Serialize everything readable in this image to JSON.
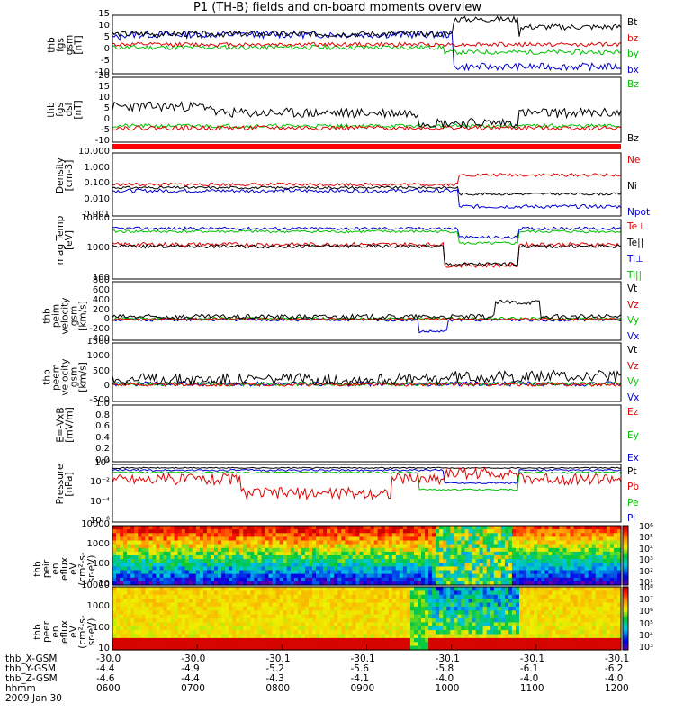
{
  "title": "P1 (TH-B) fields and on-board moments overview",
  "panels": [
    {
      "id": "fgs",
      "ylabel": "thb\nfgs\ngsm\n[nT]",
      "ticks": [
        "15",
        "10",
        "5",
        "0",
        "-5",
        "-10"
      ],
      "legend": [
        {
          "t": "Bt",
          "c": "#000000"
        },
        {
          "t": "bz",
          "c": "#e00000"
        },
        {
          "t": "by",
          "c": "#00c000"
        },
        {
          "t": "bx",
          "c": "#0000d0"
        }
      ]
    },
    {
      "id": "fgs-dsl",
      "ylabel": "thb\nfgs\ndsl\n[nT]",
      "ticks": [
        "20",
        "15",
        "10",
        "5",
        "0",
        "-5",
        "-10"
      ],
      "legend": [
        {
          "t": "Bz",
          "c": "#00c000"
        },
        {
          "t": "Bz",
          "c": "#000000"
        }
      ]
    },
    {
      "id": "density",
      "ylabel": "Density\n[cm-3]",
      "ticks": [
        "10.000",
        "1.000",
        "0.100",
        "0.010",
        "0.001"
      ],
      "legend": [
        {
          "t": "Ne",
          "c": "#e00000"
        },
        {
          "t": "Ni",
          "c": "#000000"
        },
        {
          "t": "Npot",
          "c": "#0000d0"
        }
      ]
    },
    {
      "id": "temp",
      "ylabel": "mag Temp\n[eV]",
      "ticks": [
        "10000",
        "1000",
        "100"
      ],
      "legend": [
        {
          "t": "Te⊥",
          "c": "#e00000"
        },
        {
          "t": "Te||",
          "c": "#000000"
        },
        {
          "t": "Ti⊥",
          "c": "#0000d0"
        },
        {
          "t": "Ti||",
          "c": "#00c000"
        }
      ]
    },
    {
      "id": "peim-vel",
      "ylabel": "thb\npeim\nvelocity\ngsm\n[km/s]",
      "ticks": [
        "800",
        "600",
        "400",
        "200",
        "0",
        "-200",
        "-400"
      ],
      "legend": [
        {
          "t": "Vt",
          "c": "#000000"
        },
        {
          "t": "Vz",
          "c": "#e00000"
        },
        {
          "t": "Vy",
          "c": "#00c000"
        },
        {
          "t": "Vx",
          "c": "#0000d0"
        }
      ]
    },
    {
      "id": "peem-vel",
      "ylabel": "thb\npeem\nvelocity\ngsm\n[km/s]",
      "ticks": [
        "1500",
        "1000",
        "500",
        "0",
        "-500"
      ],
      "legend": [
        {
          "t": "Vt",
          "c": "#000000"
        },
        {
          "t": "Vz",
          "c": "#e00000"
        },
        {
          "t": "Vy",
          "c": "#00c000"
        },
        {
          "t": "Vx",
          "c": "#0000d0"
        }
      ]
    },
    {
      "id": "efield",
      "ylabel": "E=-VxB\n[mV/m]",
      "ticks": [
        "1.0",
        "0.8",
        "0.6",
        "0.4",
        "0.2",
        "0.0"
      ],
      "legend": [
        {
          "t": "Ez",
          "c": "#e00000"
        },
        {
          "t": "Ey",
          "c": "#00c000"
        },
        {
          "t": "Ex",
          "c": "#0000d0"
        }
      ]
    },
    {
      "id": "pressure",
      "ylabel": "Pressure\n[nPa]",
      "ticks": [
        "10⁰",
        "10⁻²",
        "10⁻⁴",
        "10⁻⁶"
      ],
      "legend": [
        {
          "t": "Pt",
          "c": "#000000"
        },
        {
          "t": "Pb",
          "c": "#e00000"
        },
        {
          "t": "Pe",
          "c": "#00c000"
        },
        {
          "t": "Pi",
          "c": "#0000d0"
        }
      ]
    },
    {
      "id": "peir",
      "ylabel": "thb\npeir\nen\neflux\neV\n(cm²-s-\nsr-eV)",
      "ticks": [
        "10000",
        "1000",
        "100",
        "10"
      ],
      "legend": [],
      "cbar": [
        "10⁶",
        "10⁵",
        "10⁴",
        "10³",
        "10²",
        "10¹"
      ]
    },
    {
      "id": "peer",
      "ylabel": "thb\npeer\nen\neflux\neV\n(cm²-s-\nsr-eV)",
      "ticks": [
        "10000",
        "1000",
        "100",
        "10"
      ],
      "legend": [],
      "cbar": [
        "10⁸",
        "10⁷",
        "10⁶",
        "10⁵",
        "10⁴",
        "10³"
      ]
    }
  ],
  "footer": {
    "rows": [
      {
        "label": "thb_X-GSM",
        "values": [
          "-30.0",
          "-30.0",
          "-30.1",
          "-30.1",
          "-30.1",
          "-30.1",
          "-30.1"
        ]
      },
      {
        "label": "thb_Y-GSM",
        "values": [
          "-4.4",
          "-4.9",
          "-5.2",
          "-5.6",
          "-5.8",
          "-6.1",
          "-6.2"
        ]
      },
      {
        "label": "thb_Z-GSM",
        "values": [
          "-4.6",
          "-4.4",
          "-4.3",
          "-4.1",
          "-4.0",
          "-4.0",
          "-4.0"
        ]
      },
      {
        "label": "hhmm",
        "values": [
          "0600",
          "0700",
          "0800",
          "0900",
          "1000",
          "1100",
          "1200"
        ]
      }
    ],
    "date": "2009 Jan 30"
  },
  "chart_data": {
    "type": "line",
    "title": "P1 (TH-B) fields and on-board moments overview",
    "x": [
      "0600",
      "0700",
      "0800",
      "0900",
      "1000",
      "1100",
      "1200"
    ],
    "xlabel": "hhmm",
    "series": [
      {
        "name": "Bt",
        "values": [
          6,
          8,
          4,
          4,
          16,
          14,
          12
        ]
      },
      {
        "name": "bz",
        "values": [
          3,
          2,
          2,
          1,
          2,
          3,
          1
        ]
      },
      {
        "name": "by",
        "values": [
          0,
          1,
          0,
          0,
          -2,
          -3,
          -2
        ]
      },
      {
        "name": "bx",
        "values": [
          4,
          5,
          1,
          2,
          -10,
          -8,
          -12
        ]
      }
    ],
    "ylim": [
      -12,
      17
    ],
    "grid": false
  }
}
